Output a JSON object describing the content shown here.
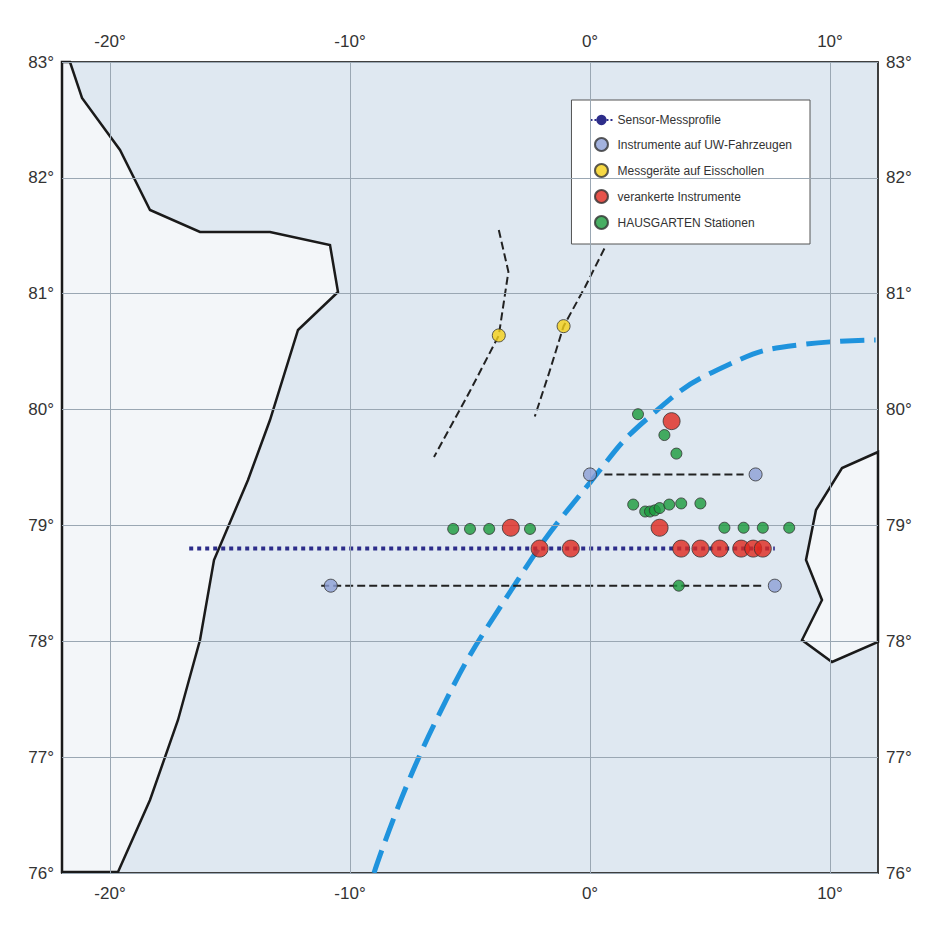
{
  "chart_data": {
    "type": "map",
    "xlim": [
      -22,
      12
    ],
    "xticks": [
      {
        "value": -20,
        "label": "-20°"
      },
      {
        "value": -10,
        "label": "-10°"
      },
      {
        "value": 0,
        "label": "0°"
      },
      {
        "value": 10,
        "label": "10°"
      }
    ],
    "ylim": [
      76,
      83
    ],
    "yticks": [
      {
        "value": 76,
        "label": "76°"
      },
      {
        "value": 77,
        "label": "77°"
      },
      {
        "value": 78,
        "label": "78°"
      },
      {
        "value": 79,
        "label": "79°"
      },
      {
        "value": 80,
        "label": "80°"
      },
      {
        "value": 81,
        "label": "81°"
      },
      {
        "value": 82,
        "label": "82°"
      },
      {
        "value": 83,
        "label": "83°"
      }
    ],
    "grid": true,
    "legend": "upper right",
    "series": [
      {
        "type": "line",
        "color": "#1f93dd",
        "line_style": "dashed",
        "x": [
          -9.0,
          -6.5,
          -3.1,
          0.0,
          2.6,
          5.7,
          8.8,
          11.9
        ],
        "y": [
          76.0,
          77.28,
          78.5,
          79.37,
          79.96,
          80.38,
          80.56,
          80.6
        ]
      },
      {
        "type": "arrows",
        "color": "#222222",
        "line_style": "dashed",
        "marker": "arrow",
        "tracks": [
          {
            "x": [
              -3.8,
              -3.4,
              -3.8,
              -5.0,
              -6.5
            ],
            "y": [
              81.55,
              81.19,
              80.64,
              80.16,
              79.59
            ]
          },
          {
            "x": [
              0.6,
              -0.2,
              -1.1,
              -1.7,
              -2.3
            ],
            "y": [
              81.39,
              81.06,
              80.72,
              80.32,
              79.94
            ]
          }
        ]
      },
      {
        "type": "arrows",
        "color": "#222222",
        "line_style": "dashed",
        "marker": "double_arrow",
        "tracks": [
          {
            "x": [
              0.6,
              6.4
            ],
            "y": [
              79.44,
              79.44
            ]
          },
          {
            "x": [
              -11.2,
              7.2
            ],
            "y": [
              78.48,
              78.48
            ]
          }
        ]
      },
      {
        "name": "Sensor-Messprofile",
        "type": "line",
        "color": "#2d2d8a",
        "line_style": "dotted",
        "x": [
          -16.7,
          7.7
        ],
        "y": [
          78.8,
          78.8
        ]
      },
      {
        "name": "Instrumente auf UW-Fahrzeugen",
        "type": "scatter",
        "color": "#8c9fd6",
        "x": [
          0.0,
          6.9,
          -10.8,
          7.7
        ],
        "y": [
          79.44,
          79.44,
          78.48,
          78.48
        ]
      },
      {
        "name": "Messgeräte auf Eisschollen",
        "type": "scatter",
        "color": "#f5d016",
        "x": [
          -3.8,
          -1.1
        ],
        "y": [
          80.64,
          80.72
        ]
      },
      {
        "name": "verankerte Instrumente",
        "type": "scatter",
        "color": "#e0281e",
        "x": [
          3.4,
          2.9,
          -3.3,
          -2.1,
          -0.8,
          3.8,
          4.6,
          5.4,
          6.3,
          6.8,
          7.2
        ],
        "y": [
          79.9,
          78.98,
          78.98,
          78.8,
          78.8,
          78.8,
          78.8,
          78.8,
          78.8,
          78.8,
          78.8
        ]
      },
      {
        "name": "HAUSGARTEN Stationen",
        "type": "scatter",
        "color": "#1a9a3c",
        "x": [
          2.0,
          3.1,
          3.6,
          1.8,
          2.3,
          2.5,
          2.7,
          2.9,
          3.3,
          3.8,
          4.6,
          -5.7,
          -5.0,
          -4.2,
          -2.5,
          5.6,
          6.4,
          7.2,
          8.3,
          3.7
        ],
        "y": [
          79.96,
          79.78,
          79.62,
          79.18,
          79.12,
          79.12,
          79.13,
          79.15,
          79.18,
          79.19,
          79.19,
          78.97,
          78.97,
          78.97,
          78.97,
          78.98,
          78.98,
          78.98,
          78.98,
          78.48
        ]
      }
    ]
  }
}
